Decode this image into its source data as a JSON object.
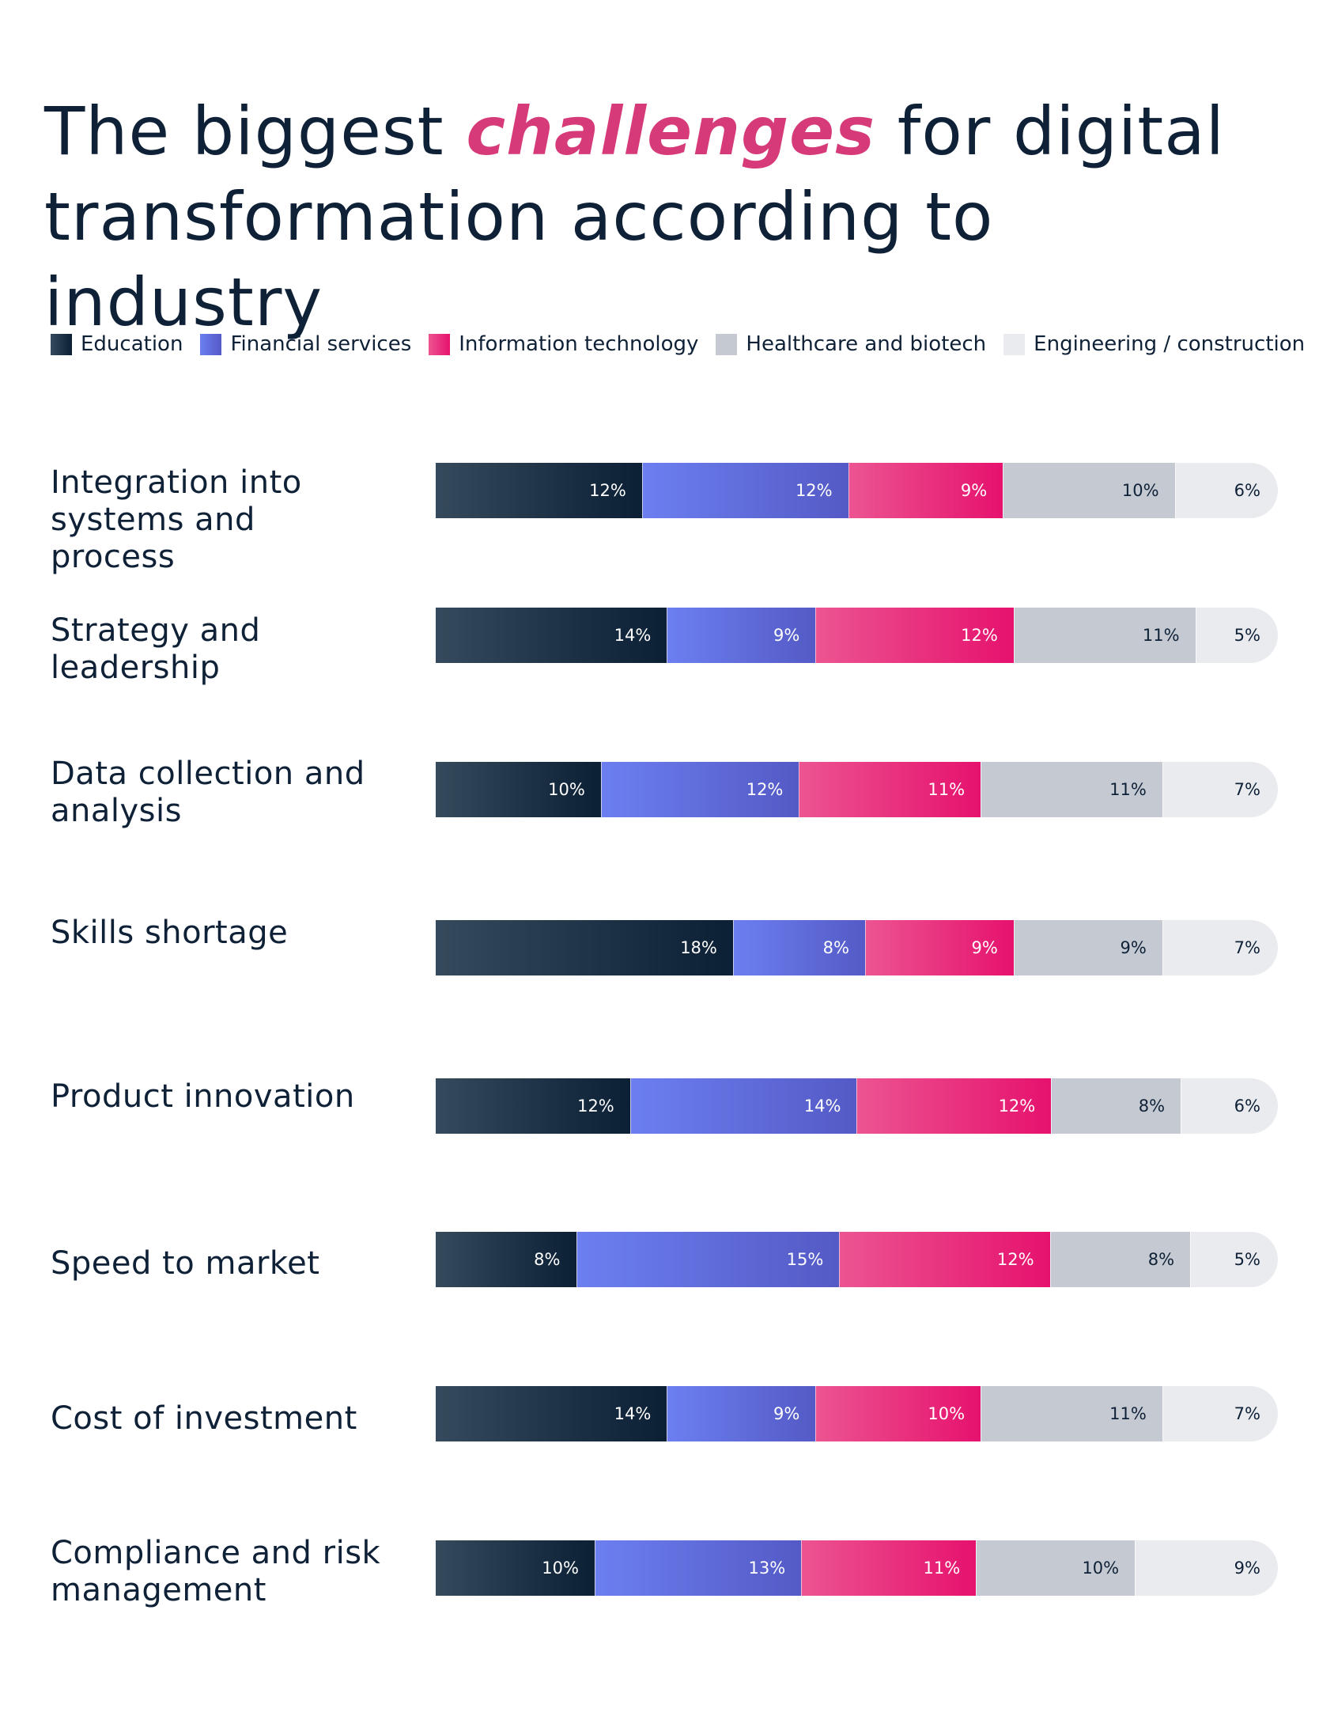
{
  "title": {
    "prefix": "The biggest ",
    "accent": "challenges",
    "suffix": " for digital transformation according to industry"
  },
  "colors": {
    "education": "#0b1f35",
    "financial_services": "#5f6fe0",
    "information_technology": "#e6126e",
    "healthcare_and_biotech": "#c5cad2",
    "engineering_construction": "#eaebef",
    "accent_text": "#d63a78",
    "text": "#0f2137"
  },
  "chart_data": {
    "type": "bar",
    "orientation": "horizontal",
    "stacked": true,
    "title": "The biggest challenges for digital transformation according to industry",
    "xlabel": "",
    "ylabel": "",
    "legend_position": "top",
    "grid": false,
    "categories": [
      "Integration into systems and process",
      "Strategy and leadership",
      "Data collection and analysis",
      "Skills shortage",
      "Product innovation",
      "Speed to market",
      "Cost of investment",
      "Compliance and risk management"
    ],
    "series": [
      {
        "name": "Education",
        "values": [
          12,
          14,
          10,
          18,
          12,
          8,
          14,
          10
        ]
      },
      {
        "name": "Financial services",
        "values": [
          12,
          9,
          12,
          8,
          14,
          15,
          9,
          13
        ]
      },
      {
        "name": "Information technology",
        "values": [
          9,
          12,
          11,
          9,
          12,
          12,
          10,
          11
        ]
      },
      {
        "name": "Healthcare and biotech",
        "values": [
          10,
          11,
          11,
          9,
          8,
          8,
          11,
          10
        ]
      },
      {
        "name": "Engineering / construction",
        "values": [
          6,
          5,
          7,
          7,
          6,
          5,
          7,
          9
        ]
      }
    ],
    "value_suffix": "%"
  }
}
